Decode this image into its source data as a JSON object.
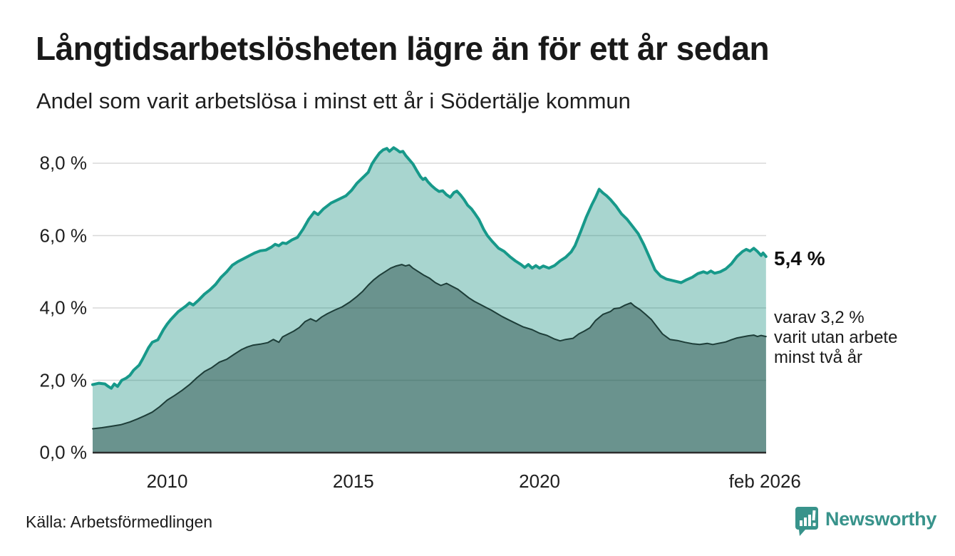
{
  "chart_data": {
    "type": "area",
    "title": "Långtidsarbetslösheten lägre än för ett år sedan",
    "subtitle": "Andel som varit arbetslösa i minst ett år i Södertälje kommun",
    "x_range": [
      2008.0,
      2026.083
    ],
    "ylim": [
      0,
      8.6
    ],
    "grid": "horizontal",
    "grid_color": "#d8d8d8",
    "axis_color": "#2d2d2d",
    "legend_position": "none",
    "y_ticks": [
      {
        "v": 0,
        "label": "0,0 %"
      },
      {
        "v": 2,
        "label": "2,0 %"
      },
      {
        "v": 4,
        "label": "4,0 %"
      },
      {
        "v": 6,
        "label": "6,0 %"
      },
      {
        "v": 8,
        "label": "8,0 %"
      }
    ],
    "x_ticks": [
      {
        "v": 2010,
        "label": "2010"
      },
      {
        "v": 2015,
        "label": "2015"
      },
      {
        "v": 2020,
        "label": "2020"
      },
      {
        "v": 2026.05,
        "label": "feb 2026"
      }
    ],
    "series": [
      {
        "name": "Andel arbetslösa minst ett år",
        "color": "#17998a",
        "fill": "rgba(20,140,125,0.37)",
        "line_width": 4,
        "points": [
          [
            2008.0,
            1.88
          ],
          [
            2008.17,
            1.92
          ],
          [
            2008.33,
            1.9
          ],
          [
            2008.42,
            1.83
          ],
          [
            2008.5,
            1.78
          ],
          [
            2008.58,
            1.9
          ],
          [
            2008.67,
            1.83
          ],
          [
            2008.78,
            2.0
          ],
          [
            2008.9,
            2.06
          ],
          [
            2009.0,
            2.14
          ],
          [
            2009.1,
            2.28
          ],
          [
            2009.25,
            2.42
          ],
          [
            2009.35,
            2.6
          ],
          [
            2009.5,
            2.9
          ],
          [
            2009.6,
            3.05
          ],
          [
            2009.75,
            3.12
          ],
          [
            2009.9,
            3.4
          ],
          [
            2010.0,
            3.55
          ],
          [
            2010.1,
            3.68
          ],
          [
            2010.3,
            3.9
          ],
          [
            2010.5,
            4.05
          ],
          [
            2010.6,
            4.14
          ],
          [
            2010.7,
            4.08
          ],
          [
            2010.85,
            4.22
          ],
          [
            2011.0,
            4.38
          ],
          [
            2011.15,
            4.5
          ],
          [
            2011.3,
            4.65
          ],
          [
            2011.45,
            4.85
          ],
          [
            2011.6,
            5.0
          ],
          [
            2011.75,
            5.18
          ],
          [
            2011.9,
            5.28
          ],
          [
            2012.05,
            5.36
          ],
          [
            2012.2,
            5.44
          ],
          [
            2012.35,
            5.52
          ],
          [
            2012.5,
            5.58
          ],
          [
            2012.65,
            5.6
          ],
          [
            2012.8,
            5.68
          ],
          [
            2012.9,
            5.76
          ],
          [
            2013.0,
            5.72
          ],
          [
            2013.1,
            5.8
          ],
          [
            2013.2,
            5.78
          ],
          [
            2013.35,
            5.88
          ],
          [
            2013.5,
            5.95
          ],
          [
            2013.65,
            6.18
          ],
          [
            2013.8,
            6.45
          ],
          [
            2013.95,
            6.65
          ],
          [
            2014.05,
            6.58
          ],
          [
            2014.2,
            6.74
          ],
          [
            2014.4,
            6.9
          ],
          [
            2014.6,
            7.0
          ],
          [
            2014.8,
            7.1
          ],
          [
            2014.95,
            7.25
          ],
          [
            2015.1,
            7.45
          ],
          [
            2015.3,
            7.65
          ],
          [
            2015.4,
            7.75
          ],
          [
            2015.5,
            7.98
          ],
          [
            2015.6,
            8.14
          ],
          [
            2015.7,
            8.28
          ],
          [
            2015.8,
            8.37
          ],
          [
            2015.9,
            8.41
          ],
          [
            2015.97,
            8.33
          ],
          [
            2016.08,
            8.43
          ],
          [
            2016.17,
            8.37
          ],
          [
            2016.25,
            8.31
          ],
          [
            2016.33,
            8.33
          ],
          [
            2016.4,
            8.22
          ],
          [
            2016.5,
            8.1
          ],
          [
            2016.6,
            7.98
          ],
          [
            2016.7,
            7.8
          ],
          [
            2016.8,
            7.63
          ],
          [
            2016.87,
            7.55
          ],
          [
            2016.93,
            7.59
          ],
          [
            2017.0,
            7.49
          ],
          [
            2017.1,
            7.38
          ],
          [
            2017.2,
            7.29
          ],
          [
            2017.3,
            7.22
          ],
          [
            2017.4,
            7.24
          ],
          [
            2017.5,
            7.13
          ],
          [
            2017.6,
            7.06
          ],
          [
            2017.7,
            7.19
          ],
          [
            2017.78,
            7.23
          ],
          [
            2017.88,
            7.12
          ],
          [
            2017.97,
            7.0
          ],
          [
            2018.07,
            6.84
          ],
          [
            2018.17,
            6.74
          ],
          [
            2018.27,
            6.6
          ],
          [
            2018.37,
            6.45
          ],
          [
            2018.5,
            6.17
          ],
          [
            2018.6,
            6.0
          ],
          [
            2018.72,
            5.85
          ],
          [
            2018.9,
            5.65
          ],
          [
            2019.05,
            5.56
          ],
          [
            2019.2,
            5.42
          ],
          [
            2019.35,
            5.3
          ],
          [
            2019.5,
            5.2
          ],
          [
            2019.6,
            5.12
          ],
          [
            2019.7,
            5.2
          ],
          [
            2019.8,
            5.1
          ],
          [
            2019.9,
            5.17
          ],
          [
            2020.0,
            5.1
          ],
          [
            2020.1,
            5.16
          ],
          [
            2020.25,
            5.1
          ],
          [
            2020.4,
            5.17
          ],
          [
            2020.55,
            5.3
          ],
          [
            2020.7,
            5.4
          ],
          [
            2020.85,
            5.55
          ],
          [
            2020.95,
            5.72
          ],
          [
            2021.1,
            6.1
          ],
          [
            2021.25,
            6.5
          ],
          [
            2021.4,
            6.85
          ],
          [
            2021.5,
            7.05
          ],
          [
            2021.6,
            7.28
          ],
          [
            2021.7,
            7.18
          ],
          [
            2021.8,
            7.1
          ],
          [
            2021.9,
            7.0
          ],
          [
            2022.05,
            6.82
          ],
          [
            2022.2,
            6.6
          ],
          [
            2022.35,
            6.45
          ],
          [
            2022.5,
            6.25
          ],
          [
            2022.65,
            6.05
          ],
          [
            2022.8,
            5.75
          ],
          [
            2022.95,
            5.4
          ],
          [
            2023.1,
            5.05
          ],
          [
            2023.25,
            4.88
          ],
          [
            2023.4,
            4.8
          ],
          [
            2023.6,
            4.75
          ],
          [
            2023.8,
            4.7
          ],
          [
            2023.95,
            4.78
          ],
          [
            2024.1,
            4.85
          ],
          [
            2024.25,
            4.95
          ],
          [
            2024.4,
            5.0
          ],
          [
            2024.5,
            4.96
          ],
          [
            2024.6,
            5.02
          ],
          [
            2024.7,
            4.96
          ],
          [
            2024.85,
            5.0
          ],
          [
            2025.0,
            5.08
          ],
          [
            2025.15,
            5.22
          ],
          [
            2025.3,
            5.42
          ],
          [
            2025.45,
            5.56
          ],
          [
            2025.55,
            5.62
          ],
          [
            2025.65,
            5.57
          ],
          [
            2025.75,
            5.65
          ],
          [
            2025.85,
            5.56
          ],
          [
            2025.95,
            5.45
          ],
          [
            2026.0,
            5.52
          ],
          [
            2026.08,
            5.42
          ]
        ]
      },
      {
        "name": "Andel arbetslösa minst två år",
        "color": "#1d3d38",
        "fill": "rgba(22,58,52,0.42)",
        "line_width": 2,
        "points": [
          [
            2008.0,
            0.66
          ],
          [
            2008.25,
            0.69
          ],
          [
            2008.5,
            0.73
          ],
          [
            2008.75,
            0.77
          ],
          [
            2009.0,
            0.85
          ],
          [
            2009.2,
            0.93
          ],
          [
            2009.4,
            1.02
          ],
          [
            2009.6,
            1.12
          ],
          [
            2009.8,
            1.27
          ],
          [
            2010.0,
            1.45
          ],
          [
            2010.2,
            1.58
          ],
          [
            2010.4,
            1.72
          ],
          [
            2010.6,
            1.88
          ],
          [
            2010.8,
            2.07
          ],
          [
            2011.0,
            2.24
          ],
          [
            2011.2,
            2.35
          ],
          [
            2011.4,
            2.5
          ],
          [
            2011.6,
            2.58
          ],
          [
            2011.8,
            2.72
          ],
          [
            2012.0,
            2.85
          ],
          [
            2012.15,
            2.92
          ],
          [
            2012.3,
            2.97
          ],
          [
            2012.5,
            3.0
          ],
          [
            2012.7,
            3.04
          ],
          [
            2012.85,
            3.13
          ],
          [
            2013.0,
            3.05
          ],
          [
            2013.1,
            3.2
          ],
          [
            2013.25,
            3.28
          ],
          [
            2013.4,
            3.36
          ],
          [
            2013.55,
            3.46
          ],
          [
            2013.7,
            3.62
          ],
          [
            2013.85,
            3.7
          ],
          [
            2014.0,
            3.63
          ],
          [
            2014.15,
            3.75
          ],
          [
            2014.3,
            3.84
          ],
          [
            2014.5,
            3.94
          ],
          [
            2014.7,
            4.03
          ],
          [
            2014.9,
            4.16
          ],
          [
            2015.1,
            4.32
          ],
          [
            2015.25,
            4.46
          ],
          [
            2015.4,
            4.63
          ],
          [
            2015.55,
            4.78
          ],
          [
            2015.7,
            4.9
          ],
          [
            2015.85,
            5.0
          ],
          [
            2016.0,
            5.1
          ],
          [
            2016.15,
            5.16
          ],
          [
            2016.3,
            5.2
          ],
          [
            2016.4,
            5.16
          ],
          [
            2016.5,
            5.19
          ],
          [
            2016.6,
            5.1
          ],
          [
            2016.75,
            5.0
          ],
          [
            2016.9,
            4.9
          ],
          [
            2017.05,
            4.82
          ],
          [
            2017.2,
            4.7
          ],
          [
            2017.35,
            4.62
          ],
          [
            2017.5,
            4.68
          ],
          [
            2017.65,
            4.6
          ],
          [
            2017.8,
            4.52
          ],
          [
            2017.95,
            4.4
          ],
          [
            2018.1,
            4.28
          ],
          [
            2018.25,
            4.18
          ],
          [
            2018.4,
            4.1
          ],
          [
            2018.55,
            4.02
          ],
          [
            2018.7,
            3.94
          ],
          [
            2018.85,
            3.85
          ],
          [
            2019.0,
            3.76
          ],
          [
            2019.15,
            3.68
          ],
          [
            2019.35,
            3.58
          ],
          [
            2019.55,
            3.48
          ],
          [
            2019.8,
            3.4
          ],
          [
            2020.0,
            3.3
          ],
          [
            2020.2,
            3.24
          ],
          [
            2020.4,
            3.14
          ],
          [
            2020.55,
            3.09
          ],
          [
            2020.7,
            3.13
          ],
          [
            2020.9,
            3.16
          ],
          [
            2021.05,
            3.28
          ],
          [
            2021.2,
            3.36
          ],
          [
            2021.35,
            3.45
          ],
          [
            2021.5,
            3.65
          ],
          [
            2021.7,
            3.82
          ],
          [
            2021.9,
            3.9
          ],
          [
            2022.0,
            3.98
          ],
          [
            2022.15,
            4.0
          ],
          [
            2022.3,
            4.08
          ],
          [
            2022.45,
            4.14
          ],
          [
            2022.55,
            4.05
          ],
          [
            2022.7,
            3.95
          ],
          [
            2022.85,
            3.82
          ],
          [
            2023.0,
            3.68
          ],
          [
            2023.15,
            3.48
          ],
          [
            2023.3,
            3.28
          ],
          [
            2023.5,
            3.13
          ],
          [
            2023.7,
            3.1
          ],
          [
            2023.9,
            3.05
          ],
          [
            2024.1,
            3.01
          ],
          [
            2024.3,
            2.99
          ],
          [
            2024.5,
            3.02
          ],
          [
            2024.65,
            2.99
          ],
          [
            2024.8,
            3.02
          ],
          [
            2025.0,
            3.06
          ],
          [
            2025.15,
            3.12
          ],
          [
            2025.3,
            3.17
          ],
          [
            2025.45,
            3.2
          ],
          [
            2025.6,
            3.23
          ],
          [
            2025.75,
            3.25
          ],
          [
            2025.85,
            3.21
          ],
          [
            2025.95,
            3.24
          ],
          [
            2026.08,
            3.21
          ]
        ]
      }
    ],
    "annotations": {
      "latest_value": "5,4 %",
      "note_lines": [
        "varav 3,2 %",
        "varit utan arbete",
        "minst två år"
      ]
    }
  },
  "footer": {
    "source": "Källa: Arbetsförmedlingen",
    "brand": "Newsworthy",
    "brand_color": "#38938b"
  }
}
